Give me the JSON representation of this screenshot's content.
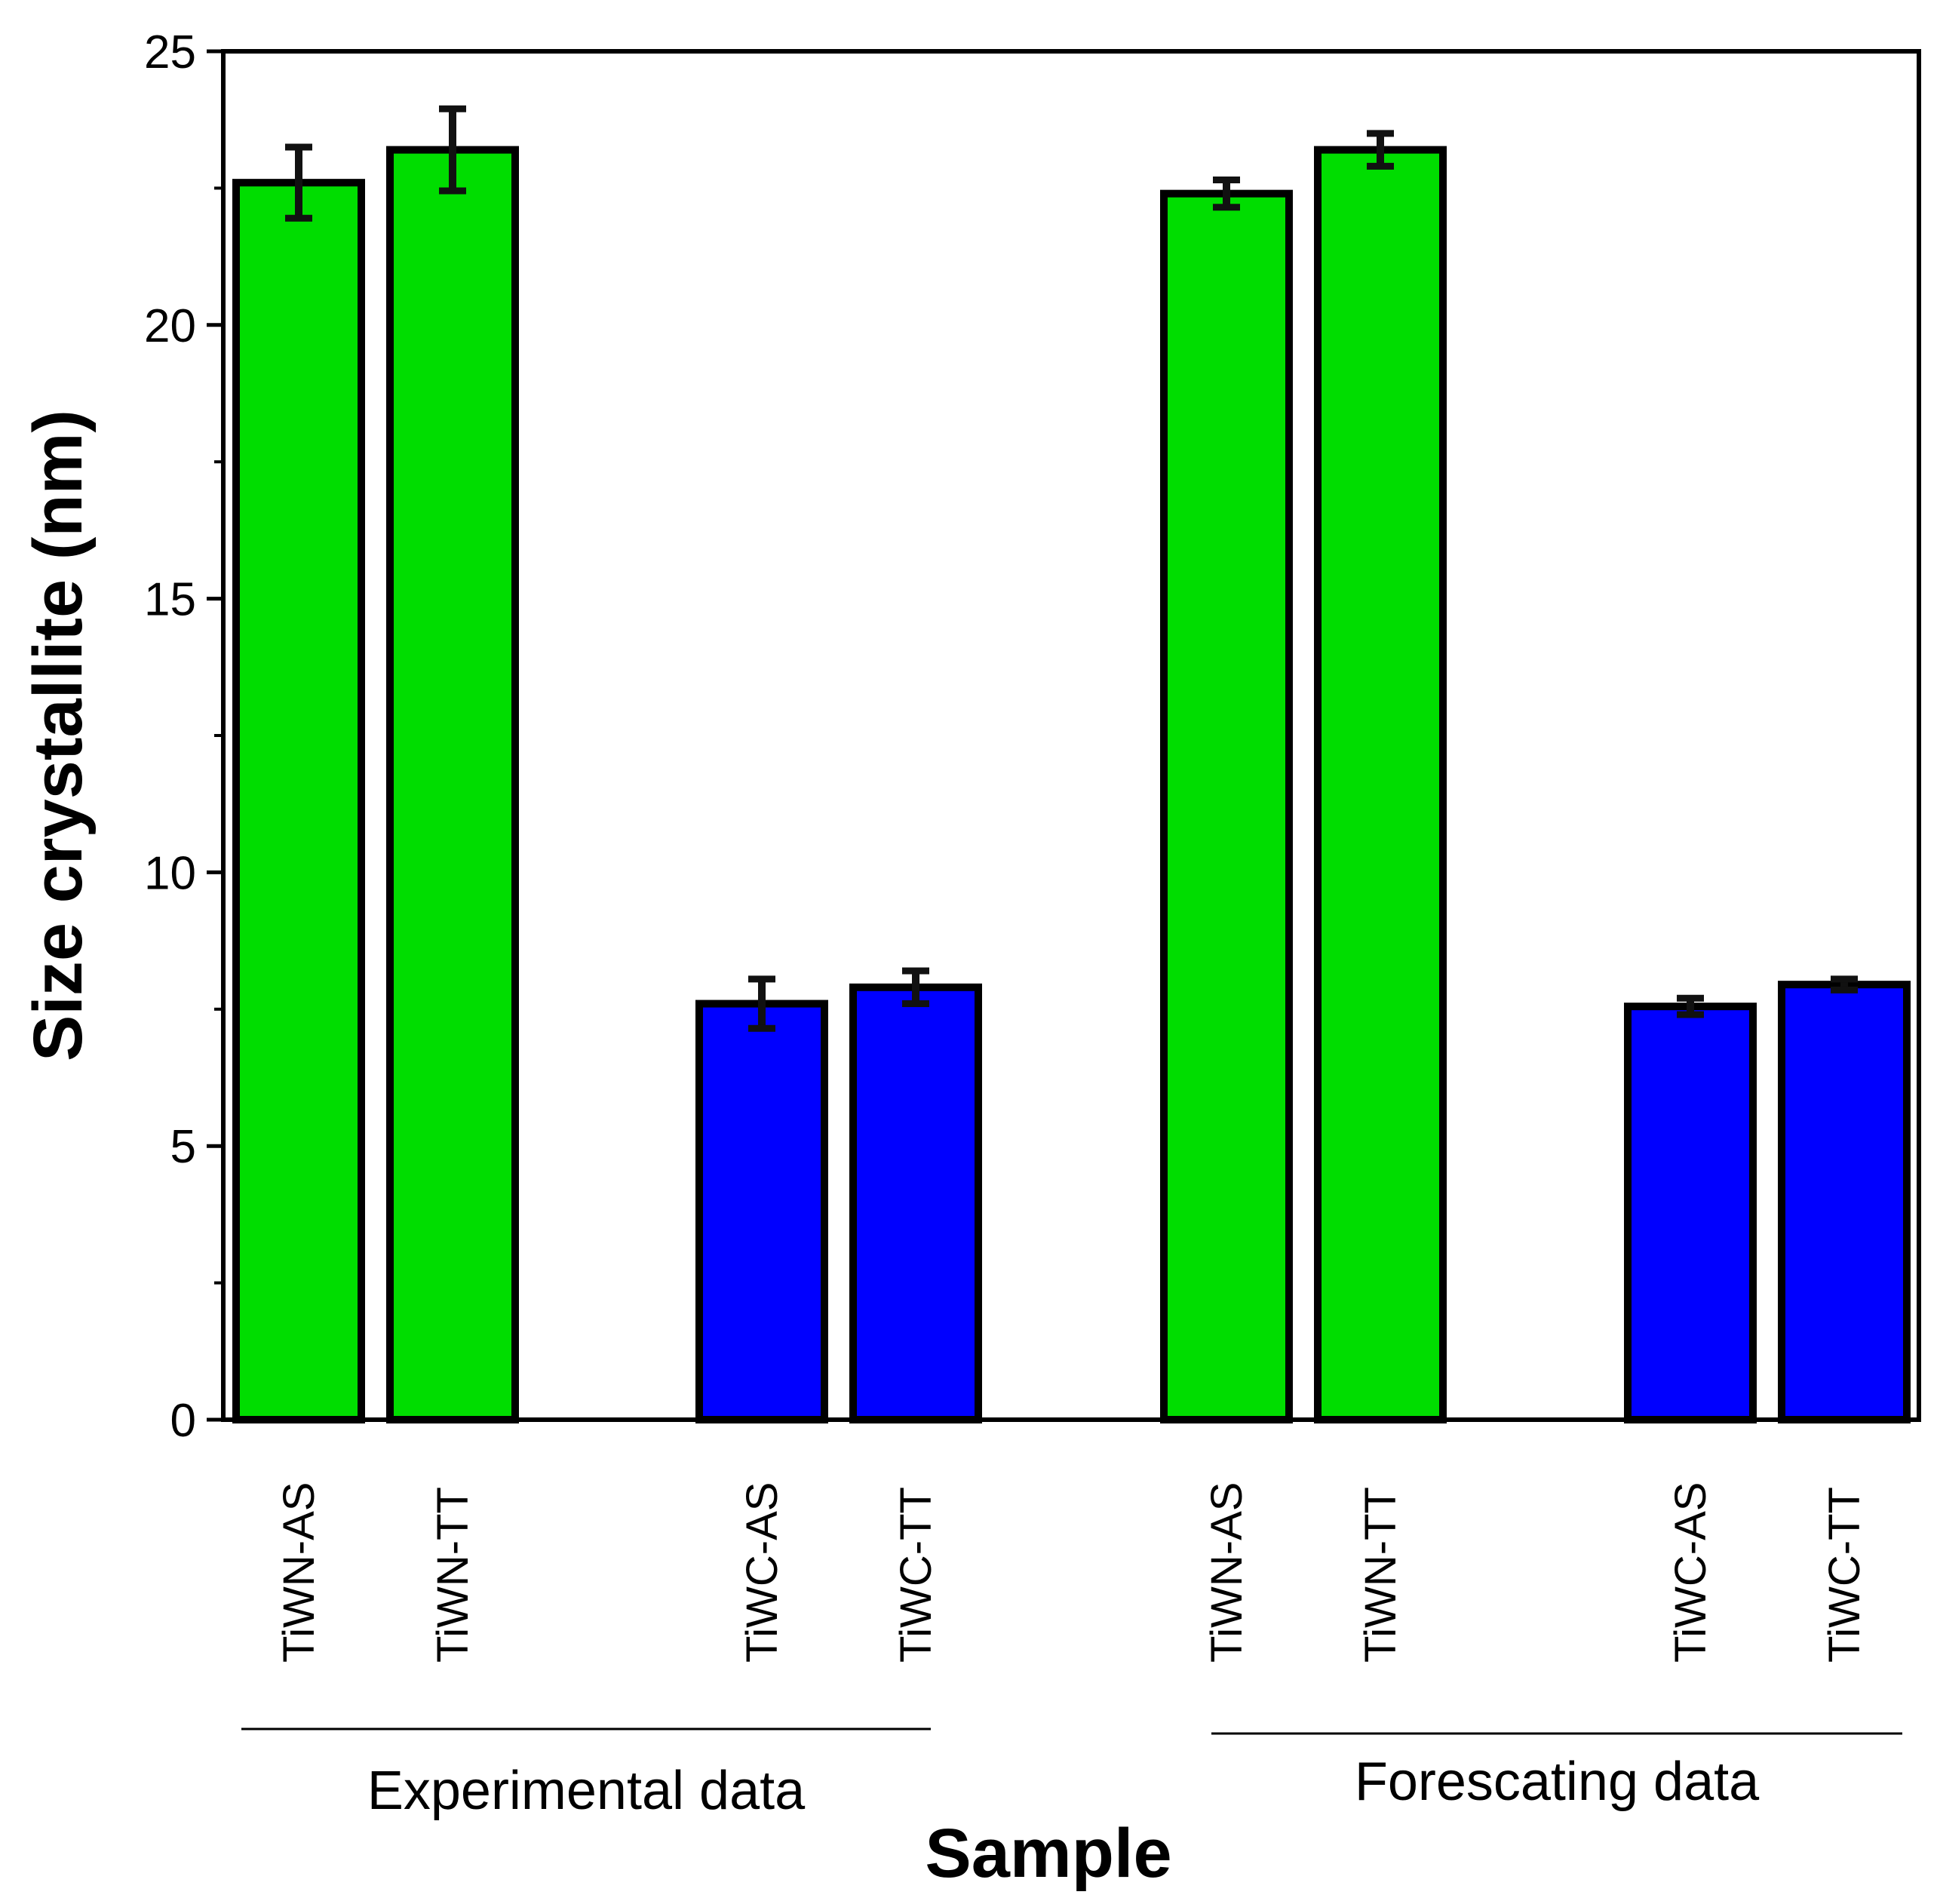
{
  "chart_data": {
    "type": "bar",
    "xlabel": "Sample",
    "ylabel": "Size crystallite (nm)",
    "ylim": [
      0,
      25
    ],
    "yticks": [
      "0",
      "5",
      "10",
      "15",
      "20",
      "25"
    ],
    "grid": false,
    "groups": [
      {
        "label": "Experimental data",
        "bars": [
          {
            "category": "TiWN-AS",
            "value": 22.6,
            "error": 0.65,
            "color": "#00dd00"
          },
          {
            "category": "TiWN-TT",
            "value": 23.2,
            "error": 0.75,
            "color": "#00dd00"
          },
          {
            "category": "TiWC-AS",
            "value": 7.6,
            "error": 0.45,
            "color": "#0000ff"
          },
          {
            "category": "TiWC-TT",
            "value": 7.9,
            "error": 0.3,
            "color": "#0000ff"
          }
        ]
      },
      {
        "label": "Forescating data",
        "bars": [
          {
            "category": "TiWN-AS",
            "value": 22.4,
            "error": 0.25,
            "color": "#00dd00"
          },
          {
            "category": "TiWN-TT",
            "value": 23.2,
            "error": 0.3,
            "color": "#00dd00"
          },
          {
            "category": "TiWC-AS",
            "value": 7.55,
            "error": 0.15,
            "color": "#0000ff"
          },
          {
            "category": "TiWC-TT",
            "value": 7.95,
            "error": 0.1,
            "color": "#0000ff"
          }
        ]
      }
    ]
  }
}
